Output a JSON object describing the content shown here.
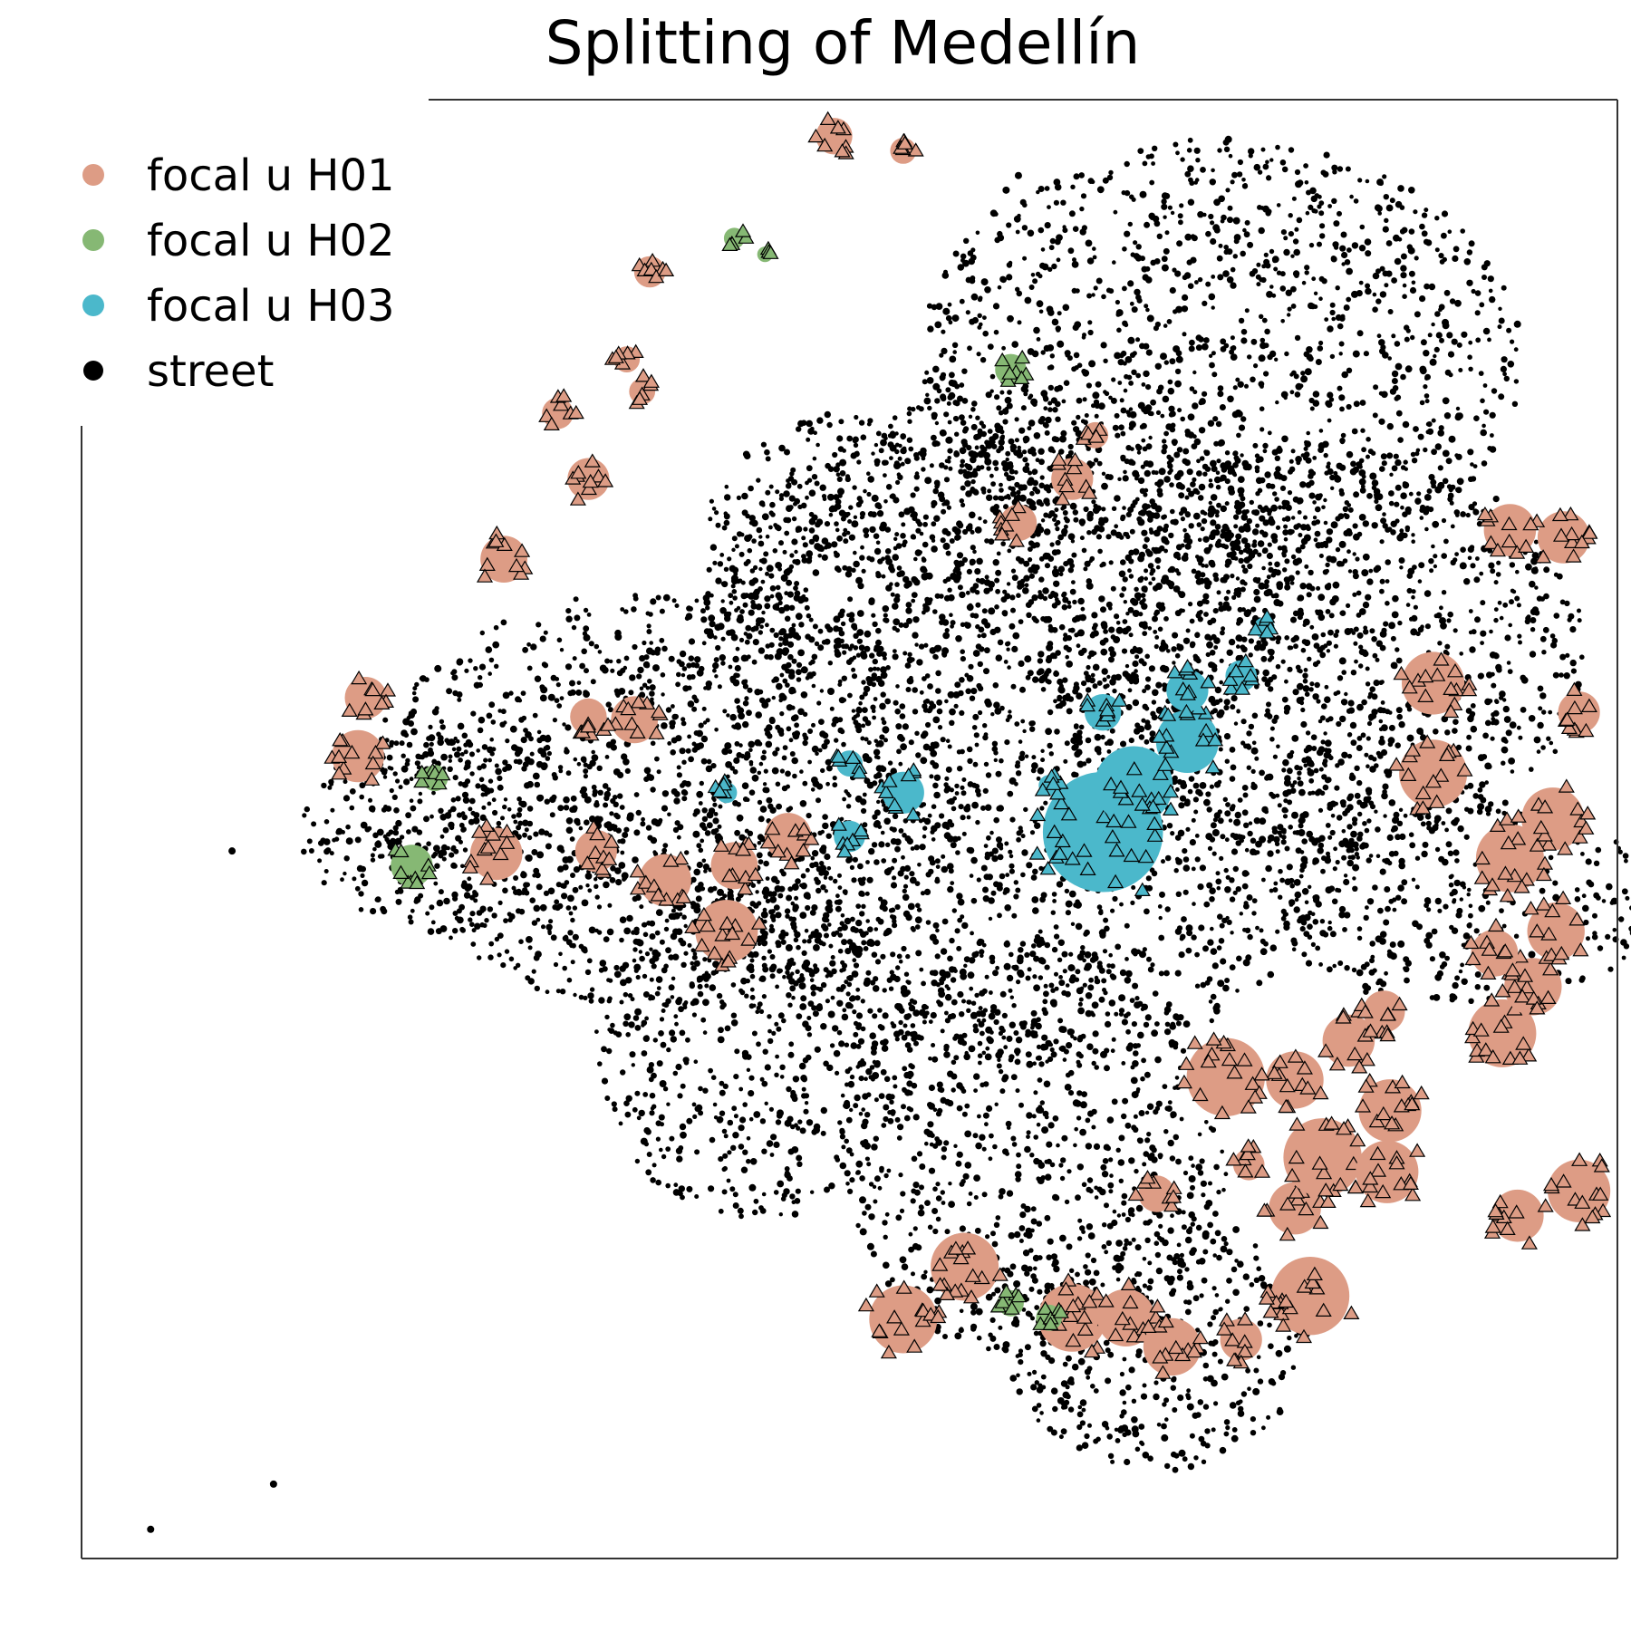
{
  "chart_data": {
    "type": "scatter",
    "title": "Splitting of Medellín",
    "legend_placement": "top-left",
    "axes_visible": false,
    "colors": {
      "focal_u_H01": "#dd9c85",
      "focal_u_H02": "#86b874",
      "focal_u_H03": "#4bb8cb",
      "street": "#000000",
      "frame": "#333333"
    },
    "legend": [
      {
        "label": "focal u H01",
        "key": "focal_u_H01"
      },
      {
        "label": "focal u H02",
        "key": "focal_u_H02"
      },
      {
        "label": "focal u H03",
        "key": "focal_u_H03"
      },
      {
        "label": "street",
        "key": "street"
      }
    ],
    "series": [
      {
        "name": "focal u H01",
        "marker": "triangle",
        "clusters": [
          {
            "cx": 0.535,
            "cy": 0.836,
            "r": 0.026
          },
          {
            "cx": 0.575,
            "cy": 0.8,
            "r": 0.026
          },
          {
            "cx": 0.645,
            "cy": 0.835,
            "r": 0.026
          },
          {
            "cx": 0.68,
            "cy": 0.835,
            "r": 0.022
          },
          {
            "cx": 0.71,
            "cy": 0.855,
            "r": 0.022
          },
          {
            "cx": 0.755,
            "cy": 0.85,
            "r": 0.016
          },
          {
            "cx": 0.8,
            "cy": 0.82,
            "r": 0.03
          },
          {
            "cx": 0.79,
            "cy": 0.76,
            "r": 0.02
          },
          {
            "cx": 0.7,
            "cy": 0.75,
            "r": 0.014
          },
          {
            "cx": 0.76,
            "cy": 0.73,
            "r": 0.012
          },
          {
            "cx": 0.935,
            "cy": 0.765,
            "r": 0.02
          },
          {
            "cx": 0.975,
            "cy": 0.748,
            "r": 0.024
          },
          {
            "cx": 0.745,
            "cy": 0.67,
            "r": 0.03
          },
          {
            "cx": 0.79,
            "cy": 0.672,
            "r": 0.022
          },
          {
            "cx": 0.808,
            "cy": 0.725,
            "r": 0.03
          },
          {
            "cx": 0.825,
            "cy": 0.645,
            "r": 0.02
          },
          {
            "cx": 0.848,
            "cy": 0.625,
            "r": 0.016
          },
          {
            "cx": 0.852,
            "cy": 0.693,
            "r": 0.024
          },
          {
            "cx": 0.85,
            "cy": 0.735,
            "r": 0.024
          },
          {
            "cx": 0.925,
            "cy": 0.64,
            "r": 0.026
          },
          {
            "cx": 0.945,
            "cy": 0.608,
            "r": 0.022
          },
          {
            "cx": 0.92,
            "cy": 0.585,
            "r": 0.018
          },
          {
            "cx": 0.96,
            "cy": 0.57,
            "r": 0.022
          },
          {
            "cx": 0.93,
            "cy": 0.52,
            "r": 0.026
          },
          {
            "cx": 0.958,
            "cy": 0.493,
            "r": 0.024
          },
          {
            "cx": 0.88,
            "cy": 0.462,
            "r": 0.026
          },
          {
            "cx": 0.88,
            "cy": 0.4,
            "r": 0.024
          },
          {
            "cx": 0.965,
            "cy": 0.3,
            "r": 0.02
          },
          {
            "cx": 0.93,
            "cy": 0.295,
            "r": 0.02
          },
          {
            "cx": 0.975,
            "cy": 0.42,
            "r": 0.016
          },
          {
            "cx": 0.42,
            "cy": 0.57,
            "r": 0.024
          },
          {
            "cx": 0.38,
            "cy": 0.535,
            "r": 0.02
          },
          {
            "cx": 0.425,
            "cy": 0.525,
            "r": 0.018
          },
          {
            "cx": 0.46,
            "cy": 0.505,
            "r": 0.018
          },
          {
            "cx": 0.335,
            "cy": 0.515,
            "r": 0.016
          },
          {
            "cx": 0.27,
            "cy": 0.517,
            "r": 0.02
          },
          {
            "cx": 0.36,
            "cy": 0.425,
            "r": 0.018
          },
          {
            "cx": 0.18,
            "cy": 0.45,
            "r": 0.02
          },
          {
            "cx": 0.185,
            "cy": 0.41,
            "r": 0.016
          },
          {
            "cx": 0.33,
            "cy": 0.423,
            "r": 0.014
          },
          {
            "cx": 0.275,
            "cy": 0.315,
            "r": 0.018
          },
          {
            "cx": 0.33,
            "cy": 0.26,
            "r": 0.016
          },
          {
            "cx": 0.31,
            "cy": 0.215,
            "r": 0.012
          },
          {
            "cx": 0.365,
            "cy": 0.2,
            "r": 0.01
          },
          {
            "cx": 0.37,
            "cy": 0.118,
            "r": 0.012
          },
          {
            "cx": 0.49,
            "cy": 0.025,
            "r": 0.014
          },
          {
            "cx": 0.535,
            "cy": 0.035,
            "r": 0.01
          },
          {
            "cx": 0.61,
            "cy": 0.29,
            "r": 0.014
          },
          {
            "cx": 0.645,
            "cy": 0.26,
            "r": 0.016
          },
          {
            "cx": 0.66,
            "cy": 0.23,
            "r": 0.01
          },
          {
            "cx": 0.355,
            "cy": 0.178,
            "r": 0.01
          }
        ]
      },
      {
        "name": "focal u H02",
        "marker": "triangle",
        "clusters": [
          {
            "cx": 0.605,
            "cy": 0.825,
            "r": 0.01
          },
          {
            "cx": 0.63,
            "cy": 0.835,
            "r": 0.01
          },
          {
            "cx": 0.23,
            "cy": 0.465,
            "r": 0.01
          },
          {
            "cx": 0.215,
            "cy": 0.525,
            "r": 0.016
          },
          {
            "cx": 0.605,
            "cy": 0.185,
            "r": 0.012
          },
          {
            "cx": 0.425,
            "cy": 0.095,
            "r": 0.008
          },
          {
            "cx": 0.445,
            "cy": 0.106,
            "r": 0.006
          }
        ]
      },
      {
        "name": "focal u H03",
        "marker": "triangle",
        "clusters": [
          {
            "cx": 0.665,
            "cy": 0.502,
            "r": 0.046
          },
          {
            "cx": 0.685,
            "cy": 0.47,
            "r": 0.03
          },
          {
            "cx": 0.72,
            "cy": 0.44,
            "r": 0.024
          },
          {
            "cx": 0.72,
            "cy": 0.405,
            "r": 0.016
          },
          {
            "cx": 0.665,
            "cy": 0.42,
            "r": 0.014
          },
          {
            "cx": 0.755,
            "cy": 0.395,
            "r": 0.012
          },
          {
            "cx": 0.77,
            "cy": 0.362,
            "r": 0.008
          },
          {
            "cx": 0.535,
            "cy": 0.475,
            "r": 0.016
          },
          {
            "cx": 0.5,
            "cy": 0.505,
            "r": 0.012
          },
          {
            "cx": 0.42,
            "cy": 0.475,
            "r": 0.008
          },
          {
            "cx": 0.5,
            "cy": 0.455,
            "r": 0.01
          },
          {
            "cx": 0.63,
            "cy": 0.47,
            "r": 0.008
          }
        ]
      },
      {
        "name": "street",
        "marker": "dot",
        "blobs": [
          {
            "cx": 0.62,
            "cy": 0.43,
            "rx": 0.26,
            "ry": 0.26
          },
          {
            "cx": 0.74,
            "cy": 0.18,
            "rx": 0.22,
            "ry": 0.17
          },
          {
            "cx": 0.8,
            "cy": 0.38,
            "rx": 0.2,
            "ry": 0.16
          },
          {
            "cx": 0.38,
            "cy": 0.48,
            "rx": 0.22,
            "ry": 0.16
          },
          {
            "cx": 0.44,
            "cy": 0.65,
            "rx": 0.12,
            "ry": 0.13
          },
          {
            "cx": 0.25,
            "cy": 0.5,
            "rx": 0.12,
            "ry": 0.08
          },
          {
            "cx": 0.62,
            "cy": 0.72,
            "rx": 0.14,
            "ry": 0.16
          },
          {
            "cx": 0.7,
            "cy": 0.85,
            "rx": 0.11,
            "ry": 0.1
          },
          {
            "cx": 0.9,
            "cy": 0.55,
            "rx": 0.14,
            "ry": 0.08
          },
          {
            "cx": 0.53,
            "cy": 0.3,
            "rx": 0.14,
            "ry": 0.1
          }
        ],
        "outliers": [
          {
            "cx": 0.045,
            "cy": 0.98
          },
          {
            "cx": 0.125,
            "cy": 0.949
          },
          {
            "cx": 0.61,
            "cy": 0.052
          },
          {
            "cx": 0.602,
            "cy": 0.062
          },
          {
            "cx": 0.752,
            "cy": 0.083
          },
          {
            "cx": 0.88,
            "cy": 0.18
          },
          {
            "cx": 0.925,
            "cy": 0.535
          },
          {
            "cx": 0.96,
            "cy": 0.547
          },
          {
            "cx": 0.098,
            "cy": 0.515
          },
          {
            "cx": 0.232,
            "cy": 0.39
          }
        ]
      }
    ]
  }
}
